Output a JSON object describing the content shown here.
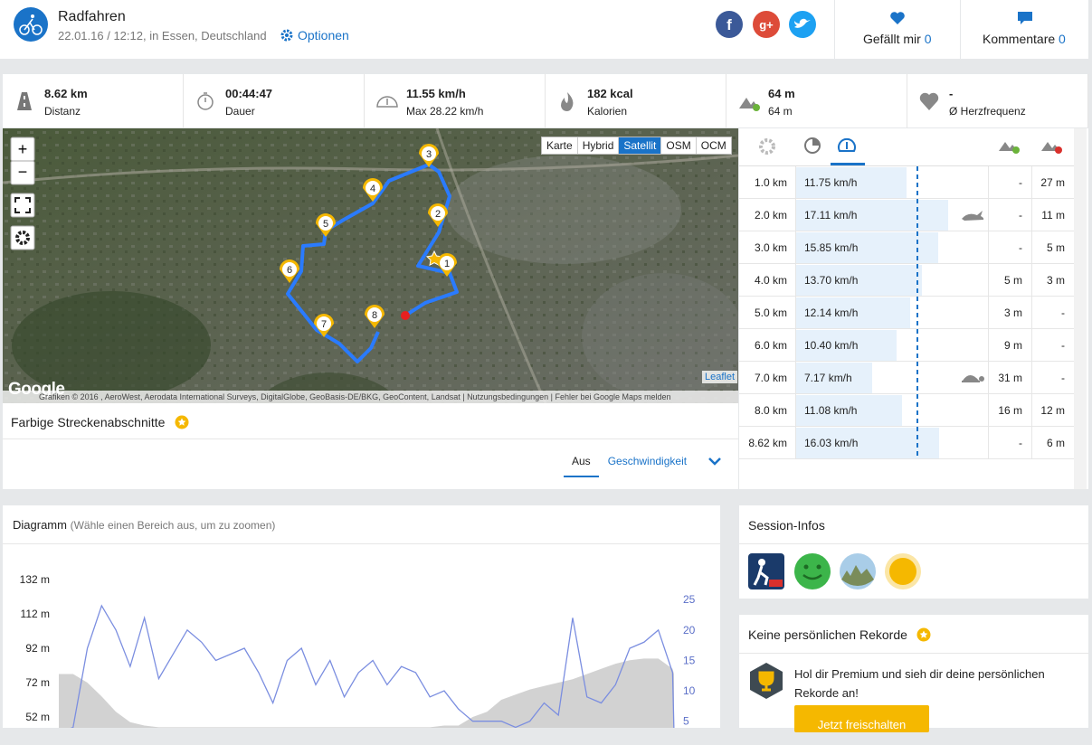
{
  "header": {
    "title": "Radfahren",
    "subtitle": "22.01.16 / 12:12, in Essen, Deutschland",
    "options": "Optionen",
    "likes": {
      "label": "Gefällt mir",
      "count": "0"
    },
    "comments": {
      "label": "Kommentare",
      "count": "0"
    }
  },
  "stats": [
    {
      "value": "8.62 km",
      "label": "Distanz"
    },
    {
      "value": "00:44:47",
      "label": "Dauer"
    },
    {
      "value": "11.55 km/h",
      "label": "Max 28.22 km/h"
    },
    {
      "value": "182 kcal",
      "label": "Kalorien"
    },
    {
      "value": "64 m",
      "label": "64 m"
    },
    {
      "value": "-",
      "label": "Ø Herzfrequenz"
    }
  ],
  "map": {
    "layers": [
      "Karte",
      "Hybrid",
      "Satellit",
      "OSM",
      "OCM"
    ],
    "active_layer": "Satellit",
    "markers": [
      "1",
      "2",
      "3",
      "4",
      "5",
      "6",
      "7",
      "8"
    ],
    "leaflet": "Leaflet",
    "logo": "Google",
    "attribution": "Grafiken © 2016 , AeroWest, Aerodata International Surveys, DigitalGlobe, GeoBasis-DE/BKG, GeoContent, Landsat",
    "terms": "Nutzungsbedingungen",
    "report": "Fehler bei Google Maps melden"
  },
  "segments": {
    "title": "Farbige Streckenabschnitte",
    "tabs": [
      "Aus",
      "Geschwindigkeit"
    ],
    "active_tab": "Aus"
  },
  "splits": {
    "rows": [
      {
        "distance": "1.0 km",
        "speed": {
          "value": 11.75,
          "label": "11.75 km/h"
        },
        "up": "-",
        "down": "27 m"
      },
      {
        "distance": "2.0 km",
        "speed": {
          "value": 17.11,
          "label": "17.11 km/h"
        },
        "up": "-",
        "down": "11 m"
      },
      {
        "distance": "3.0 km",
        "speed": {
          "value": 15.85,
          "label": "15.85 km/h"
        },
        "up": "-",
        "down": "5 m"
      },
      {
        "distance": "4.0 km",
        "speed": {
          "value": 13.7,
          "label": "13.70 km/h"
        },
        "up": "5 m",
        "down": "3 m"
      },
      {
        "distance": "5.0 km",
        "speed": {
          "value": 12.14,
          "label": "12.14 km/h"
        },
        "up": "3 m",
        "down": "-"
      },
      {
        "distance": "6.0 km",
        "speed": {
          "value": 10.4,
          "label": "10.40 km/h"
        },
        "up": "9 m",
        "down": "-"
      },
      {
        "distance": "7.0 km",
        "speed": {
          "value": 7.17,
          "label": "7.17 km/h"
        },
        "up": "31 m",
        "down": "-"
      },
      {
        "distance": "8.0 km",
        "speed": {
          "value": 11.08,
          "label": "11.08 km/h"
        },
        "up": "16 m",
        "down": "12 m"
      },
      {
        "distance": "8.62 km",
        "speed": {
          "value": 16.03,
          "label": "16.03 km/h"
        },
        "up": "-",
        "down": "6 m"
      }
    ]
  },
  "diagram": {
    "title": "Diagramm",
    "hint": "(Wähle einen Bereich aus, um zu zoomen)",
    "chart_data": {
      "type": "area-line",
      "x": [
        0,
        0.2,
        0.4,
        0.6,
        0.8,
        1.0,
        1.2,
        1.4,
        1.6,
        1.8,
        2.0,
        2.2,
        2.4,
        2.6,
        2.8,
        3.0,
        3.2,
        3.4,
        3.6,
        3.8,
        4.0,
        4.2,
        4.4,
        4.6,
        4.8,
        5.0,
        5.2,
        5.4,
        5.6,
        5.8,
        6.0,
        6.2,
        6.4,
        6.6,
        6.8,
        7.0,
        7.2,
        7.4,
        7.6,
        7.8,
        8.0,
        8.2,
        8.4,
        8.6,
        8.62
      ],
      "xlim": [
        0,
        8.62
      ],
      "series": [
        {
          "kind": "area",
          "color": "#d2d2d2",
          "values": [
            77,
            77,
            72,
            64,
            55,
            49,
            47,
            46,
            46,
            46,
            46,
            46,
            46,
            46,
            46,
            46,
            46,
            46,
            46,
            46,
            46,
            46,
            46,
            46,
            46,
            46,
            46,
            47,
            47,
            52,
            55,
            62,
            65,
            68,
            70,
            72,
            74,
            77,
            80,
            83,
            85,
            86,
            86,
            80,
            77
          ]
        },
        {
          "kind": "line",
          "color": "#7b8ee0",
          "axis": "y2",
          "values": [
            3,
            4,
            17,
            24,
            20,
            14,
            22,
            12,
            16,
            20,
            18,
            15,
            16,
            17,
            13,
            8,
            15,
            17,
            11,
            15,
            9,
            13,
            15,
            11,
            14,
            13,
            9,
            10,
            7,
            5,
            5,
            5,
            4,
            5,
            8,
            6,
            22,
            9,
            8,
            11,
            17,
            18,
            20,
            13,
            3
          ]
        }
      ],
      "ylim": [
        52,
        132
      ],
      "yticks": [
        {
          "value": 132,
          "label": "132 m"
        },
        {
          "value": 112,
          "label": "112 m"
        },
        {
          "value": 92,
          "label": "92 m"
        },
        {
          "value": 72,
          "label": "72 m"
        },
        {
          "value": 52,
          "label": "52 m"
        }
      ],
      "y2lim": [
        5.7,
        28.3
      ],
      "y2ticks": [
        25,
        20,
        15,
        10,
        5
      ],
      "grid": false
    }
  },
  "session": {
    "title": "Session-Infos"
  },
  "records": {
    "title": "Keine persönlichen Rekorde",
    "text": "Hol dir Premium und sieh dir deine persönlichen Rekorde an!",
    "button": "Jetzt freischalten"
  }
}
